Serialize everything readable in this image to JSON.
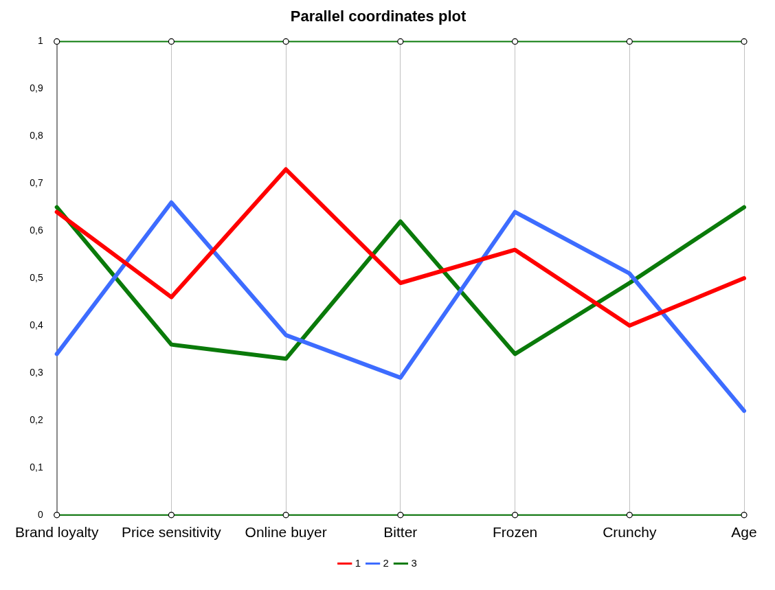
{
  "chart_data": {
    "type": "line",
    "title": "Parallel coordinates plot",
    "categories": [
      "Brand loyalty",
      "Price sensitivity",
      "Online buyer",
      "Bitter",
      "Frozen",
      "Crunchy",
      "Age"
    ],
    "series": [
      {
        "name": "1",
        "color": "#ff0000",
        "values": [
          0.64,
          0.46,
          0.73,
          0.49,
          0.56,
          0.4,
          0.5
        ]
      },
      {
        "name": "2",
        "color": "#3d6cff",
        "values": [
          0.34,
          0.66,
          0.38,
          0.29,
          0.64,
          0.51,
          0.22
        ]
      },
      {
        "name": "3",
        "color": "#0a7a0a",
        "values": [
          0.65,
          0.36,
          0.33,
          0.62,
          0.34,
          0.49,
          0.65
        ]
      },
      {
        "color": "#0a7a0a",
        "marker": "circle",
        "values": [
          1,
          1,
          1,
          1,
          1,
          1,
          1
        ]
      },
      {
        "color": "#0a7a0a",
        "marker": "circle",
        "values": [
          0,
          0,
          0,
          0,
          0,
          0,
          0
        ]
      }
    ],
    "ylim": [
      0,
      1
    ],
    "yticks": [
      0,
      {
        "value": 0.1,
        "label": "0,1"
      },
      {
        "value": 0.2,
        "label": "0,2"
      },
      {
        "value": 0.3,
        "label": "0,3"
      },
      {
        "value": 0.4,
        "label": "0,4"
      },
      {
        "value": 0.5,
        "label": "0,5"
      },
      {
        "value": 0.6,
        "label": "0,6"
      },
      {
        "value": 0.7,
        "label": "0,7"
      },
      {
        "value": 0.8,
        "label": "0,8"
      },
      {
        "value": 0.9,
        "label": "0,9"
      },
      1
    ],
    "grid": "x",
    "legend": "bottom",
    "marker": "none",
    "line_style": "solid"
  }
}
